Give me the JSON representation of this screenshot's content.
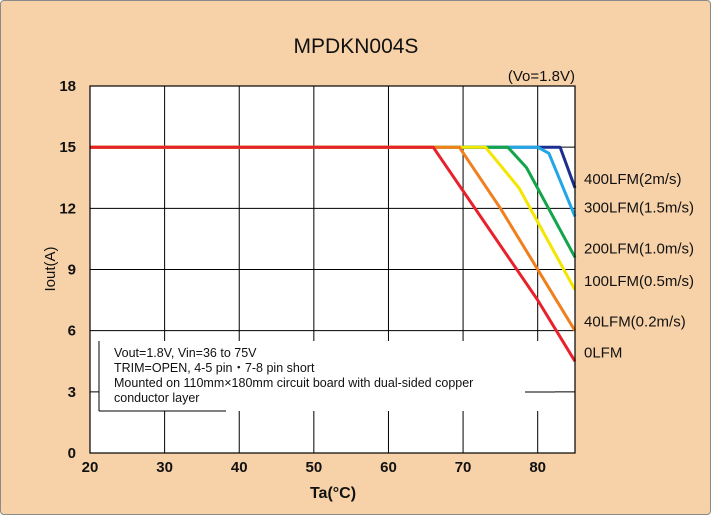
{
  "chart_data": {
    "type": "line",
    "title": "MPDKN004S",
    "subtitle": "(Vo=1.8V)",
    "xlabel": "Ta(°C)",
    "ylabel": "Iout(A)",
    "xlim": [
      20,
      85
    ],
    "ylim": [
      0,
      18
    ],
    "x_ticks": [
      20,
      30,
      40,
      50,
      60,
      70,
      80
    ],
    "y_ticks": [
      0,
      3,
      6,
      9,
      12,
      15,
      18
    ],
    "grid": true,
    "background": "#f7d2a8",
    "plot_background": "#ffffff",
    "annotation": [
      "Vout=1.8V,  Vin=36 to 75V",
      "TRIM=OPEN,  4-5 pin・7-8 pin short",
      "Mounted on 110mm×180mm circuit board with dual-sided copper",
      "conductor layer"
    ],
    "series": [
      {
        "name": "0LFM",
        "color": "#e8212a",
        "points": [
          [
            20,
            15
          ],
          [
            66,
            15
          ],
          [
            80,
            7.5
          ],
          [
            85,
            4.5
          ]
        ]
      },
      {
        "name": "40LFM(0.2m/s)",
        "color": "#f07f1e",
        "points": [
          [
            20,
            15
          ],
          [
            69.5,
            15
          ],
          [
            75,
            12
          ],
          [
            85,
            6
          ]
        ]
      },
      {
        "name": "100LFM(0.5m/s)",
        "color": "#f5e600",
        "points": [
          [
            20,
            15
          ],
          [
            73,
            15
          ],
          [
            77.5,
            13
          ],
          [
            85,
            8
          ]
        ]
      },
      {
        "name": "200LFM(1.0m/s)",
        "color": "#14a44a",
        "points": [
          [
            20,
            15
          ],
          [
            76,
            15
          ],
          [
            78.5,
            14
          ],
          [
            85,
            9.6
          ]
        ]
      },
      {
        "name": "300LFM(1.5m/s)",
        "color": "#22a6e6",
        "points": [
          [
            20,
            15
          ],
          [
            80,
            15
          ],
          [
            81.5,
            14.7
          ],
          [
            85,
            11.6
          ]
        ]
      },
      {
        "name": "400LFM(2m/s)",
        "color": "#1c2f8f",
        "points": [
          [
            20,
            15
          ],
          [
            83,
            15
          ],
          [
            85,
            13
          ]
        ]
      }
    ]
  }
}
